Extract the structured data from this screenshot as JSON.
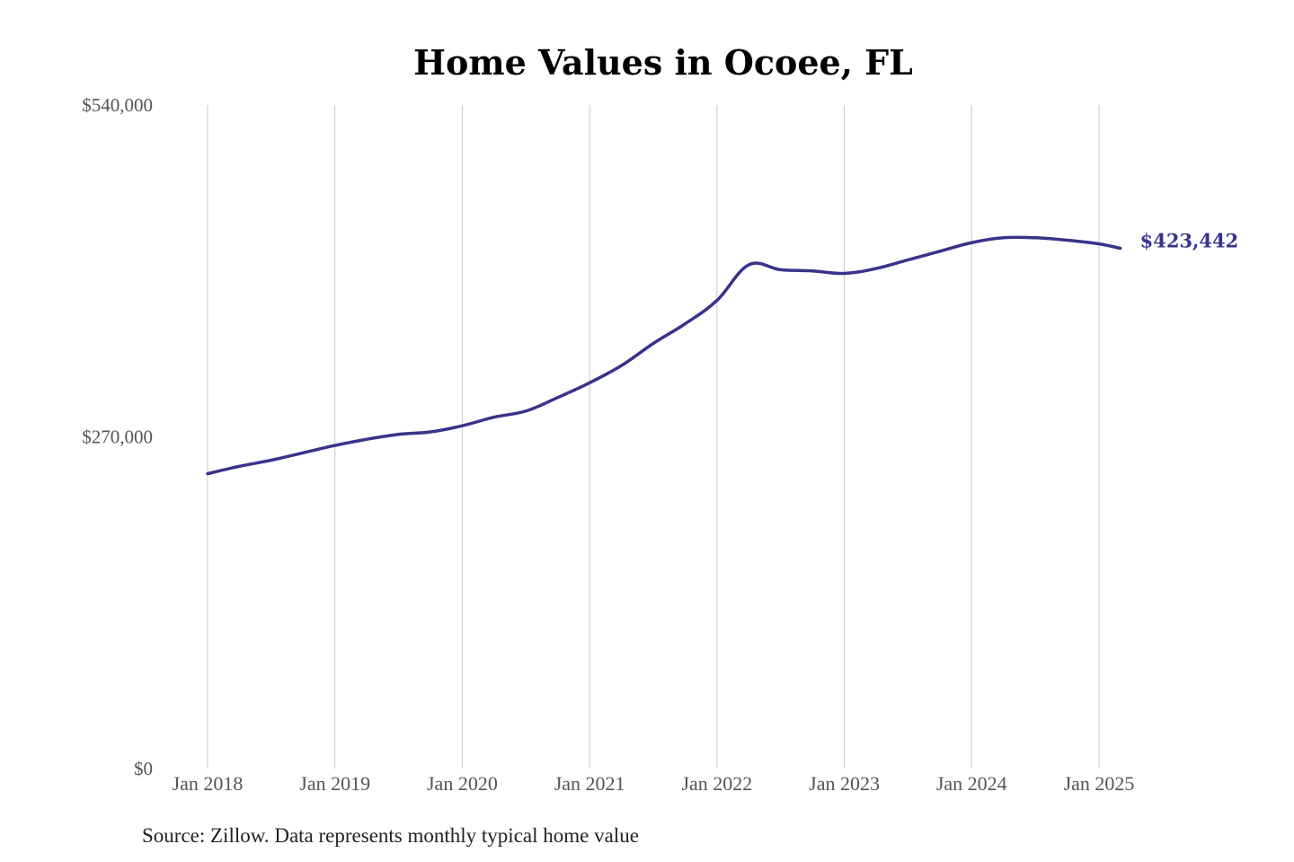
{
  "chart_data": {
    "type": "line",
    "title": "Home Values in Ocoee, FL",
    "xlabel": "",
    "ylabel": "",
    "ylim": [
      0,
      540000
    ],
    "y_ticks": [
      {
        "value": 0,
        "label": "$0"
      },
      {
        "value": 270000,
        "label": "$270,000"
      },
      {
        "value": 540000,
        "label": "$540,000"
      }
    ],
    "x_ticks": [
      {
        "value": "2018-01",
        "label": "Jan 2018"
      },
      {
        "value": "2019-01",
        "label": "Jan 2019"
      },
      {
        "value": "2020-01",
        "label": "Jan 2020"
      },
      {
        "value": "2021-01",
        "label": "Jan 2021"
      },
      {
        "value": "2022-01",
        "label": "Jan 2022"
      },
      {
        "value": "2023-01",
        "label": "Jan 2023"
      },
      {
        "value": "2024-01",
        "label": "Jan 2024"
      },
      {
        "value": "2025-01",
        "label": "Jan 2025"
      }
    ],
    "grid": {
      "vertical": true,
      "horizontal": false
    },
    "line_color": "#39338a",
    "series": [
      {
        "x": [
          "2018-01",
          "2018-04",
          "2018-07",
          "2018-10",
          "2019-01",
          "2019-04",
          "2019-07",
          "2019-10",
          "2020-01",
          "2020-04",
          "2020-07",
          "2020-10",
          "2021-01",
          "2021-04",
          "2021-07",
          "2021-10",
          "2022-01",
          "2022-04",
          "2022-07",
          "2022-10",
          "2023-01",
          "2023-04",
          "2023-07",
          "2023-10",
          "2024-01",
          "2024-04",
          "2024-07",
          "2024-10",
          "2025-01",
          "2025-03"
        ],
        "y": [
          240000,
          246000,
          251000,
          257000,
          263000,
          268000,
          272000,
          274000,
          279000,
          286000,
          291000,
          302000,
          314000,
          328000,
          346000,
          362000,
          381000,
          410000,
          406000,
          405000,
          403000,
          407000,
          414000,
          421000,
          428000,
          432000,
          432000,
          430000,
          427000,
          423442
        ]
      }
    ],
    "end_label": "$423,442"
  },
  "source": "Source: Zillow. Data represents monthly typical home value"
}
